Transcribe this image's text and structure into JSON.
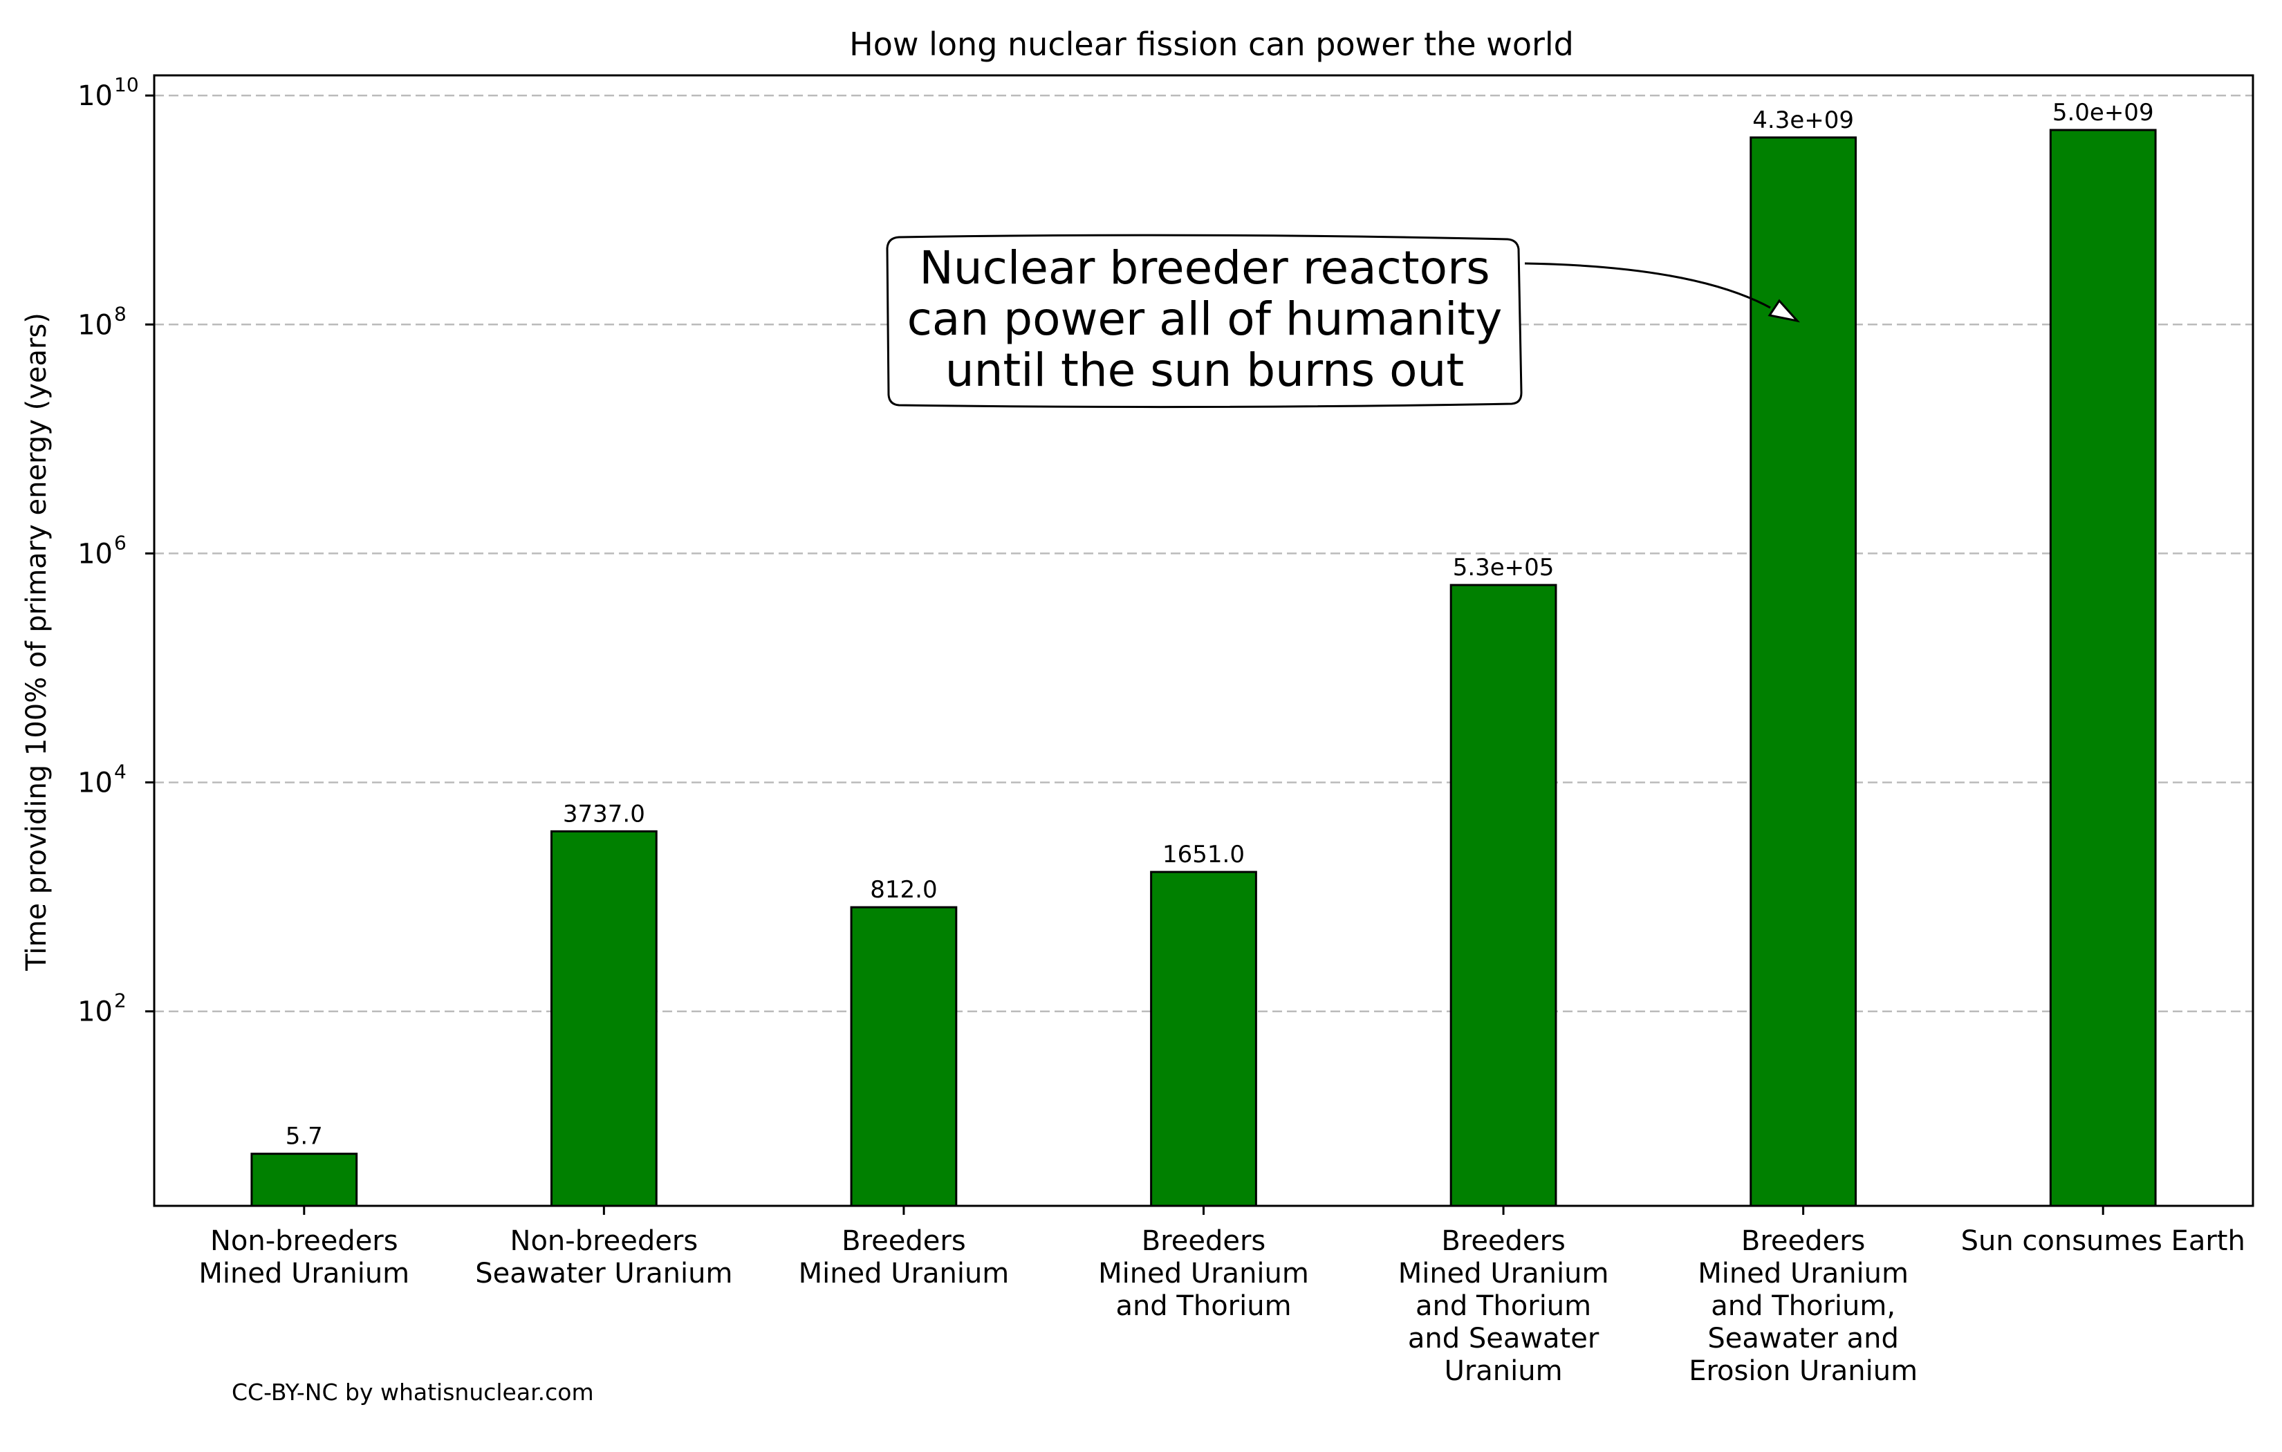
{
  "chart_data": {
    "type": "bar",
    "title": "How long nuclear fission can power the world",
    "ylabel": "Time providing 100% of primary energy (years)",
    "xlabel": "",
    "yscale": "log",
    "ylim": [
      2,
      15000000000
    ],
    "yticks": [
      {
        "value": 100,
        "base": "10",
        "exp": "2"
      },
      {
        "value": 10000,
        "base": "10",
        "exp": "4"
      },
      {
        "value": 1000000,
        "base": "10",
        "exp": "6"
      },
      {
        "value": 100000000,
        "base": "10",
        "exp": "8"
      },
      {
        "value": 10000000000,
        "base": "10",
        "exp": "10"
      }
    ],
    "grid": "horizontal dashed",
    "bar_color": "#008000",
    "categories": [
      [
        "Non-breeders",
        "Mined Uranium"
      ],
      [
        "Non-breeders",
        "Seawater Uranium"
      ],
      [
        "Breeders",
        "Mined Uranium"
      ],
      [
        "Breeders",
        "Mined Uranium",
        "and Thorium"
      ],
      [
        "Breeders",
        "Mined Uranium",
        "and Thorium",
        "and Seawater",
        "Uranium"
      ],
      [
        "Breeders",
        "Mined Uranium",
        "and Thorium,",
        "Seawater and",
        "Erosion Uranium"
      ],
      [
        "Sun consumes Earth"
      ]
    ],
    "values": [
      5.7,
      3737.0,
      812.0,
      1651.0,
      530000,
      4300000000,
      5000000000
    ],
    "value_labels": [
      "5.7",
      "3737.0",
      "812.0",
      "1651.0",
      "5.3e+05",
      "4.3e+09",
      "5.0e+09"
    ],
    "annotation": {
      "lines": [
        "Nuclear breeder reactors",
        "can power all of humanity",
        "until the sun burns out"
      ],
      "points_to_category_index": 5,
      "points_to_value": 100000000
    },
    "credit": "CC-BY-NC by whatisnuclear.com"
  }
}
